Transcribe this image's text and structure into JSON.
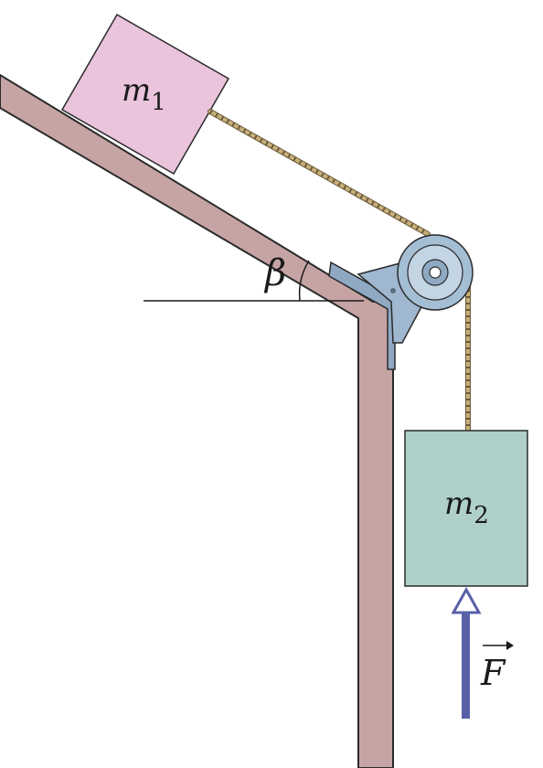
{
  "labels": {
    "m1": {
      "symbol": "m",
      "subscript": "1"
    },
    "m2": {
      "symbol": "m",
      "subscript": "2"
    },
    "angle": "β",
    "force": "F"
  },
  "colors": {
    "wall": "#c7a4a4",
    "wall_stroke": "#2a2a2a",
    "block1": "#eac3dc",
    "block2": "#aed0c9",
    "pulley": "#a4bed4",
    "bracket": "#8fa9c3",
    "rope": "#c8b07a",
    "force_arrow": "#5860a8",
    "line": "#1a1a1a"
  }
}
